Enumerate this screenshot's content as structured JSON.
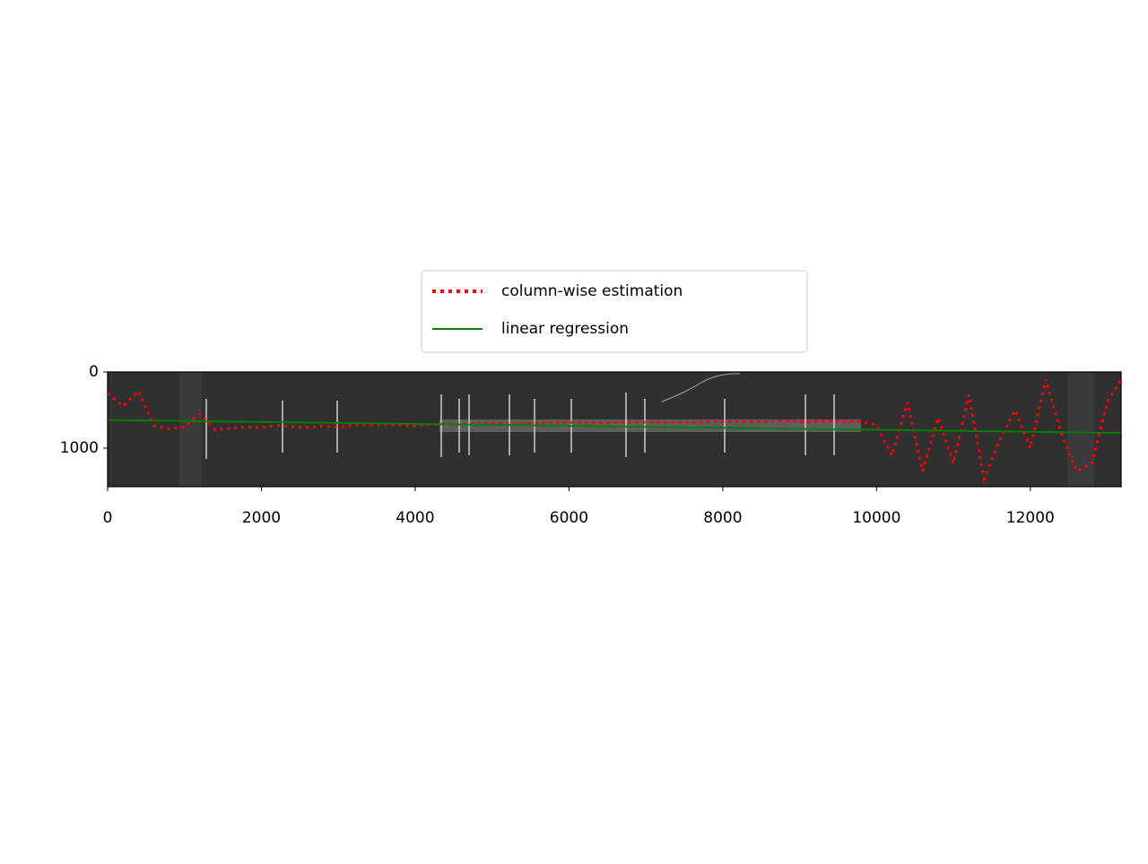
{
  "chart_data": {
    "type": "line",
    "xlim": [
      0,
      13180
    ],
    "ylim": [
      1505,
      0
    ],
    "xticks": [
      0,
      2000,
      4000,
      6000,
      8000,
      10000,
      12000
    ],
    "yticks": [
      0,
      1000
    ],
    "legend": "upper center",
    "series": [
      {
        "name": "column-wise estimation",
        "color": "#ff0000",
        "style": "dotted",
        "x": [
          0,
          200,
          400,
          600,
          800,
          1000,
          1200,
          1400,
          1600,
          1800,
          2000,
          2200,
          2400,
          2600,
          2800,
          3000,
          3200,
          3400,
          3600,
          3800,
          4000,
          4200,
          4400,
          4600,
          4800,
          5000,
          5200,
          5400,
          5600,
          5800,
          6000,
          6200,
          6400,
          6600,
          6800,
          7000,
          7200,
          7400,
          7600,
          7800,
          8000,
          8200,
          8400,
          8600,
          8800,
          9000,
          9200,
          9400,
          9600,
          9800,
          10000,
          10200,
          10400,
          10600,
          10800,
          11000,
          11200,
          11400,
          11600,
          11800,
          12000,
          12200,
          12400,
          12600,
          12800,
          13000,
          13180
        ],
        "values": [
          280,
          450,
          250,
          700,
          750,
          720,
          550,
          760,
          740,
          720,
          730,
          700,
          720,
          730,
          710,
          720,
          700,
          700,
          690,
          700,
          710,
          690,
          680,
          690,
          680,
          670,
          680,
          680,
          670,
          670,
          660,
          670,
          670,
          660,
          660,
          660,
          660,
          660,
          660,
          650,
          650,
          650,
          650,
          650,
          640,
          650,
          650,
          640,
          650,
          650,
          700,
          1100,
          400,
          1300,
          600,
          1200,
          300,
          1400,
          900,
          500,
          1000,
          100,
          800,
          1300,
          1200,
          400,
          100
        ]
      },
      {
        "name": "linear regression",
        "color": "#008000",
        "style": "solid",
        "x": [
          0,
          13180
        ],
        "values": [
          630,
          800
        ]
      }
    ]
  }
}
